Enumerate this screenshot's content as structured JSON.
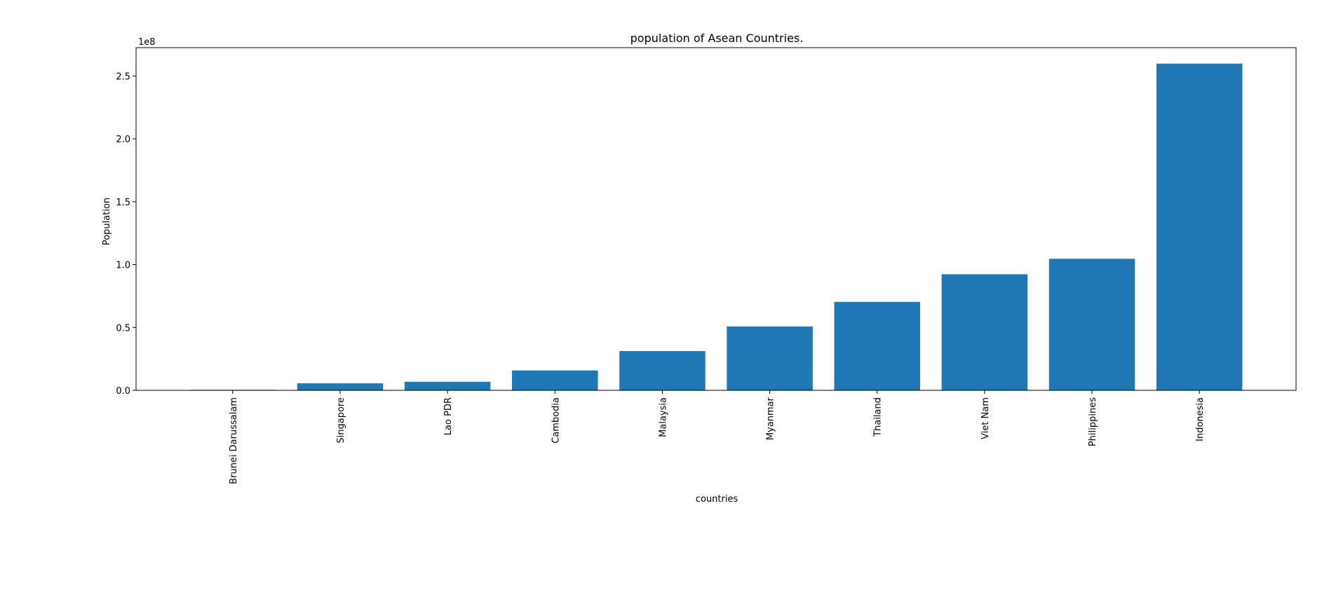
{
  "chart_data": {
    "type": "bar",
    "title": "population of Asean Countries.",
    "xlabel": "countries",
    "ylabel": "Population",
    "offset_label": "1e8",
    "categories": [
      "Brunei Darussalam",
      "Singapore",
      "Lao PDR",
      "Cambodia",
      "Malaysia",
      "Myanmar",
      "Thailand",
      "Viet Nam",
      "Philippines",
      "Indonesia"
    ],
    "values": [
      423000,
      5600000,
      6800000,
      15800000,
      31200000,
      50800000,
      70300000,
      92300000,
      104600000,
      259800000
    ],
    "ylim": [
      0,
      272500000
    ],
    "yticks": [
      0,
      50000000,
      100000000,
      150000000,
      200000000,
      250000000
    ],
    "ytick_labels": [
      "0.0",
      "0.5",
      "1.0",
      "1.5",
      "2.0",
      "2.5"
    ],
    "bar_color": "#1f77b4",
    "grid": false,
    "legend": "none"
  }
}
